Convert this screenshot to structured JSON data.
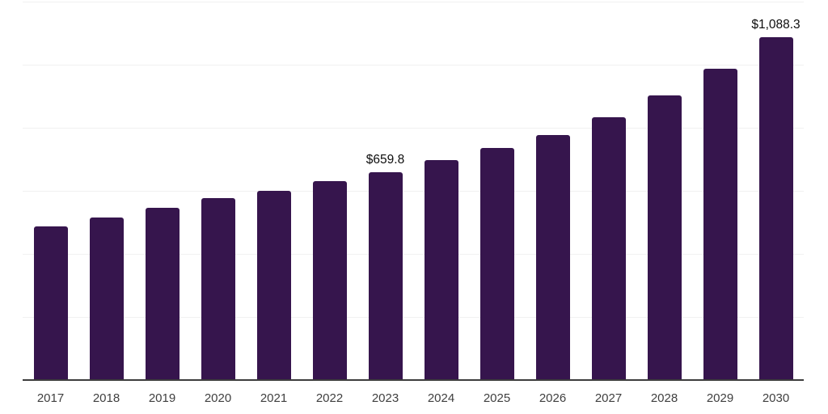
{
  "chart_data": {
    "type": "bar",
    "title": "",
    "xlabel": "",
    "ylabel": "",
    "categories": [
      "2017",
      "2018",
      "2019",
      "2020",
      "2021",
      "2022",
      "2023",
      "2024",
      "2025",
      "2026",
      "2027",
      "2028",
      "2029",
      "2030"
    ],
    "values": [
      487,
      515,
      546,
      577,
      601,
      630,
      659.8,
      698,
      735,
      778,
      833,
      902,
      987,
      1088.3
    ],
    "data_labels": [
      {
        "category": "2023",
        "text": "$659.8"
      },
      {
        "category": "2030",
        "text": "$1,088.3"
      }
    ],
    "ylim": [
      0,
      1200
    ],
    "gridline_values": [
      200,
      400,
      600,
      800,
      1000,
      1200
    ],
    "grid": true,
    "legend": false,
    "y_axis_labels_visible": false,
    "colors": {
      "bar": "#36154d",
      "gridline": "#f1f1f1",
      "axis_line": "#3d3d3d",
      "tick_label": "#3f3f3f",
      "data_label": "#0d0d0d",
      "background": "#ffffff"
    }
  }
}
